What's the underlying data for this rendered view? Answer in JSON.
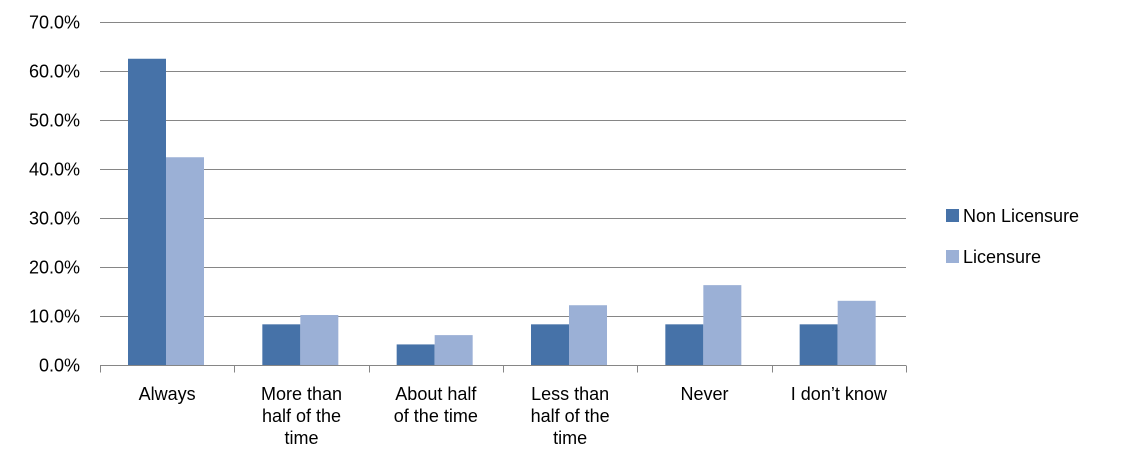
{
  "chart_data": {
    "type": "bar",
    "title": "",
    "xlabel": "",
    "ylabel": "",
    "categories": [
      [
        "Always"
      ],
      [
        "More than",
        "half of the",
        "time"
      ],
      [
        "About half",
        "of the time"
      ],
      [
        "Less than",
        "half of the",
        "time"
      ],
      [
        "Never"
      ],
      [
        "I don’t know"
      ]
    ],
    "series": [
      {
        "name": "Non Licensure",
        "color": "#4672A8",
        "values": [
          62.5,
          8.3,
          4.2,
          8.3,
          8.3,
          8.3
        ]
      },
      {
        "name": "Licensure",
        "color": "#9BB0D6",
        "values": [
          42.4,
          10.2,
          6.1,
          12.2,
          16.3,
          13.1
        ]
      }
    ],
    "ylim": [
      0,
      70
    ],
    "ytick_step": 10,
    "ytick_format": "percent_1dp",
    "y_ticks": [
      "0.0%",
      "10.0%",
      "20.0%",
      "30.0%",
      "40.0%",
      "50.0%",
      "60.0%",
      "70.0%"
    ],
    "grid": true,
    "gridline_color": "#868686",
    "legend_position": "right"
  }
}
